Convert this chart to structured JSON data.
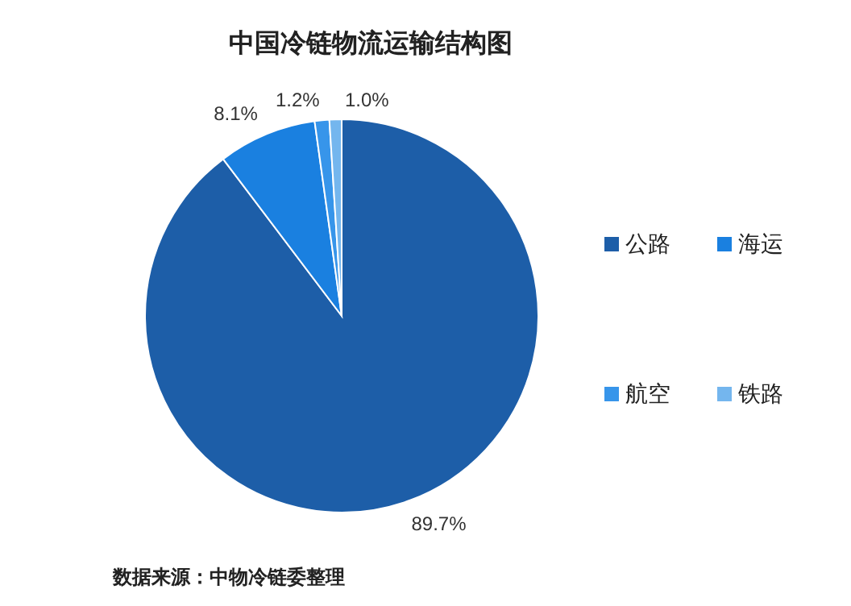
{
  "chart_data": {
    "type": "pie",
    "title": "中国冷链物流运输结构图",
    "categories": [
      "公路",
      "海运",
      "航空",
      "铁路"
    ],
    "values": [
      89.7,
      8.1,
      1.2,
      1.0
    ],
    "colors": [
      "#1d5ea8",
      "#1a80e0",
      "#3795ea",
      "#74b6ee"
    ],
    "value_labels": [
      "89.7%",
      "8.1%",
      "1.2%",
      "1.0%"
    ],
    "legend": "right",
    "annotations": [
      "数据来源：中物冷链委整理"
    ]
  }
}
